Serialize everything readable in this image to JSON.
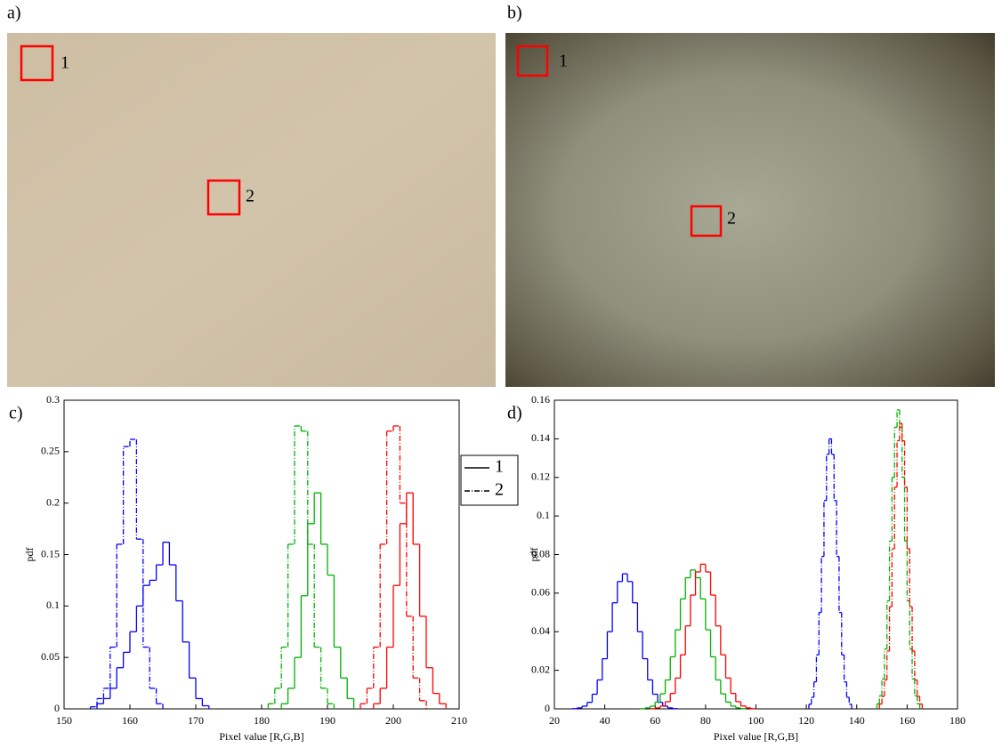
{
  "images": [
    {
      "label": "a)",
      "regions": [
        "1",
        "2"
      ]
    },
    {
      "label": "b)",
      "regions": [
        "1",
        "2"
      ]
    }
  ],
  "chart_data": [
    {
      "type": "histogram",
      "label": "c)",
      "xlabel": "Pixel value [R,G,B]",
      "ylabel": "pdf",
      "xlim": [
        150,
        210
      ],
      "ylim": [
        0,
        0.3
      ],
      "xticks": [
        150,
        160,
        170,
        180,
        190,
        200,
        210
      ],
      "yticks": [
        0,
        0.05,
        0.1,
        0.15,
        0.2,
        0.25,
        0.3
      ],
      "legend": [
        {
          "label": "1",
          "style": "solid"
        },
        {
          "label": "2",
          "style": "dashdot"
        }
      ],
      "series": [
        {
          "color": "#0000ff",
          "style": "solid",
          "bins": [
            155,
            156,
            157,
            158,
            159,
            160,
            161,
            162,
            163,
            164,
            165,
            166,
            167,
            168,
            169,
            170,
            171,
            172
          ],
          "values": [
            0.005,
            0.01,
            0.02,
            0.04,
            0.055,
            0.075,
            0.1,
            0.12,
            0.125,
            0.14,
            0.162,
            0.14,
            0.105,
            0.065,
            0.03,
            0.01,
            0.003
          ]
        },
        {
          "color": "#0000ff",
          "style": "dashdot",
          "bins": [
            154,
            155,
            156,
            157,
            158,
            159,
            160,
            161,
            162,
            163,
            164,
            165
          ],
          "values": [
            0.002,
            0.01,
            0.02,
            0.06,
            0.16,
            0.255,
            0.262,
            0.165,
            0.06,
            0.02,
            0.005
          ]
        },
        {
          "color": "#00b000",
          "style": "solid",
          "bins": [
            183,
            184,
            185,
            186,
            187,
            188,
            189,
            190,
            191,
            192,
            193,
            194
          ],
          "values": [
            0.005,
            0.02,
            0.05,
            0.11,
            0.18,
            0.21,
            0.16,
            0.13,
            0.06,
            0.03,
            0.01
          ]
        },
        {
          "color": "#00b000",
          "style": "dashdot",
          "bins": [
            181,
            182,
            183,
            184,
            185,
            186,
            187,
            188,
            189,
            190,
            191
          ],
          "values": [
            0.005,
            0.02,
            0.06,
            0.16,
            0.275,
            0.27,
            0.16,
            0.06,
            0.02,
            0.005
          ]
        },
        {
          "color": "#ff0000",
          "style": "solid",
          "bins": [
            197,
            198,
            199,
            200,
            201,
            202,
            203,
            204,
            205,
            206,
            207,
            208
          ],
          "values": [
            0.005,
            0.02,
            0.06,
            0.12,
            0.18,
            0.21,
            0.16,
            0.09,
            0.04,
            0.015,
            0.005
          ]
        },
        {
          "color": "#ff0000",
          "style": "dashdot",
          "bins": [
            195,
            196,
            197,
            198,
            199,
            200,
            201,
            202,
            203,
            204,
            205
          ],
          "values": [
            0.005,
            0.02,
            0.06,
            0.16,
            0.27,
            0.275,
            0.2,
            0.09,
            0.03,
            0.008
          ]
        }
      ]
    },
    {
      "type": "histogram",
      "label": "d)",
      "xlabel": "Pixel value [R,G,B]",
      "ylabel": "pdf",
      "xlim": [
        20,
        180
      ],
      "ylim": [
        0,
        0.16
      ],
      "xticks": [
        20,
        40,
        60,
        80,
        100,
        120,
        140,
        160,
        180
      ],
      "yticks": [
        0,
        0.02,
        0.04,
        0.06,
        0.08,
        0.1,
        0.12,
        0.14,
        0.16
      ],
      "series": [
        {
          "color": "#0000ff",
          "style": "solid",
          "bins": [
            27,
            29,
            31,
            33,
            35,
            37,
            39,
            41,
            43,
            45,
            47,
            49,
            51,
            53,
            55,
            57,
            59,
            61,
            63,
            65,
            67,
            69
          ],
          "values": [
            0.0001,
            0.0005,
            0.0014,
            0.0034,
            0.0076,
            0.015,
            0.026,
            0.04,
            0.055,
            0.066,
            0.07,
            0.066,
            0.055,
            0.04,
            0.026,
            0.015,
            0.0076,
            0.0034,
            0.0014,
            0.0005,
            0.0001
          ]
        },
        {
          "color": "#00b000",
          "style": "solid",
          "bins": [
            54,
            56,
            58,
            60,
            62,
            64,
            66,
            68,
            70,
            72,
            74,
            76,
            78,
            80,
            82,
            84,
            86,
            88,
            90,
            92,
            94,
            96
          ],
          "values": [
            0.0001,
            0.0005,
            0.0014,
            0.0035,
            0.0078,
            0.015,
            0.027,
            0.041,
            0.057,
            0.068,
            0.072,
            0.068,
            0.057,
            0.041,
            0.027,
            0.015,
            0.0078,
            0.0035,
            0.0014,
            0.0005,
            0.0001
          ]
        },
        {
          "color": "#ff0000",
          "style": "solid",
          "bins": [
            58,
            60,
            62,
            64,
            66,
            68,
            70,
            72,
            74,
            76,
            78,
            80,
            82,
            84,
            86,
            88,
            90,
            92,
            94,
            96,
            98,
            100
          ],
          "values": [
            0.0001,
            0.0005,
            0.0015,
            0.0037,
            0.008,
            0.016,
            0.028,
            0.043,
            0.059,
            0.071,
            0.075,
            0.071,
            0.059,
            0.043,
            0.028,
            0.016,
            0.008,
            0.0037,
            0.0015,
            0.0005,
            0.0001
          ]
        },
        {
          "color": "#0000ff",
          "style": "dashdot",
          "bins": [
            121,
            122,
            123,
            124,
            125,
            126,
            127,
            128,
            129,
            130,
            131,
            132,
            133,
            134,
            135,
            136,
            137,
            138
          ],
          "values": [
            0.0024,
            0.006,
            0.014,
            0.028,
            0.05,
            0.079,
            0.108,
            0.132,
            0.14,
            0.132,
            0.108,
            0.079,
            0.05,
            0.028,
            0.014,
            0.006,
            0.0024
          ]
        },
        {
          "color": "#00b000",
          "style": "dashdot",
          "bins": [
            148,
            149,
            150,
            151,
            152,
            153,
            154,
            155,
            156,
            157,
            158,
            159,
            160,
            161,
            162,
            163,
            164,
            165
          ],
          "values": [
            0.0026,
            0.0068,
            0.0155,
            0.031,
            0.056,
            0.087,
            0.12,
            0.146,
            0.155,
            0.146,
            0.12,
            0.087,
            0.056,
            0.031,
            0.0155,
            0.0068,
            0.0026
          ]
        },
        {
          "color": "#ff0000",
          "style": "dashdot",
          "bins": [
            149,
            150,
            151,
            152,
            153,
            154,
            155,
            156,
            157,
            158,
            159,
            160,
            161,
            162,
            163,
            164,
            165,
            166
          ],
          "values": [
            0.0025,
            0.0065,
            0.015,
            0.03,
            0.053,
            0.083,
            0.115,
            0.139,
            0.148,
            0.139,
            0.115,
            0.083,
            0.053,
            0.03,
            0.015,
            0.0065,
            0.0025
          ]
        }
      ]
    }
  ]
}
